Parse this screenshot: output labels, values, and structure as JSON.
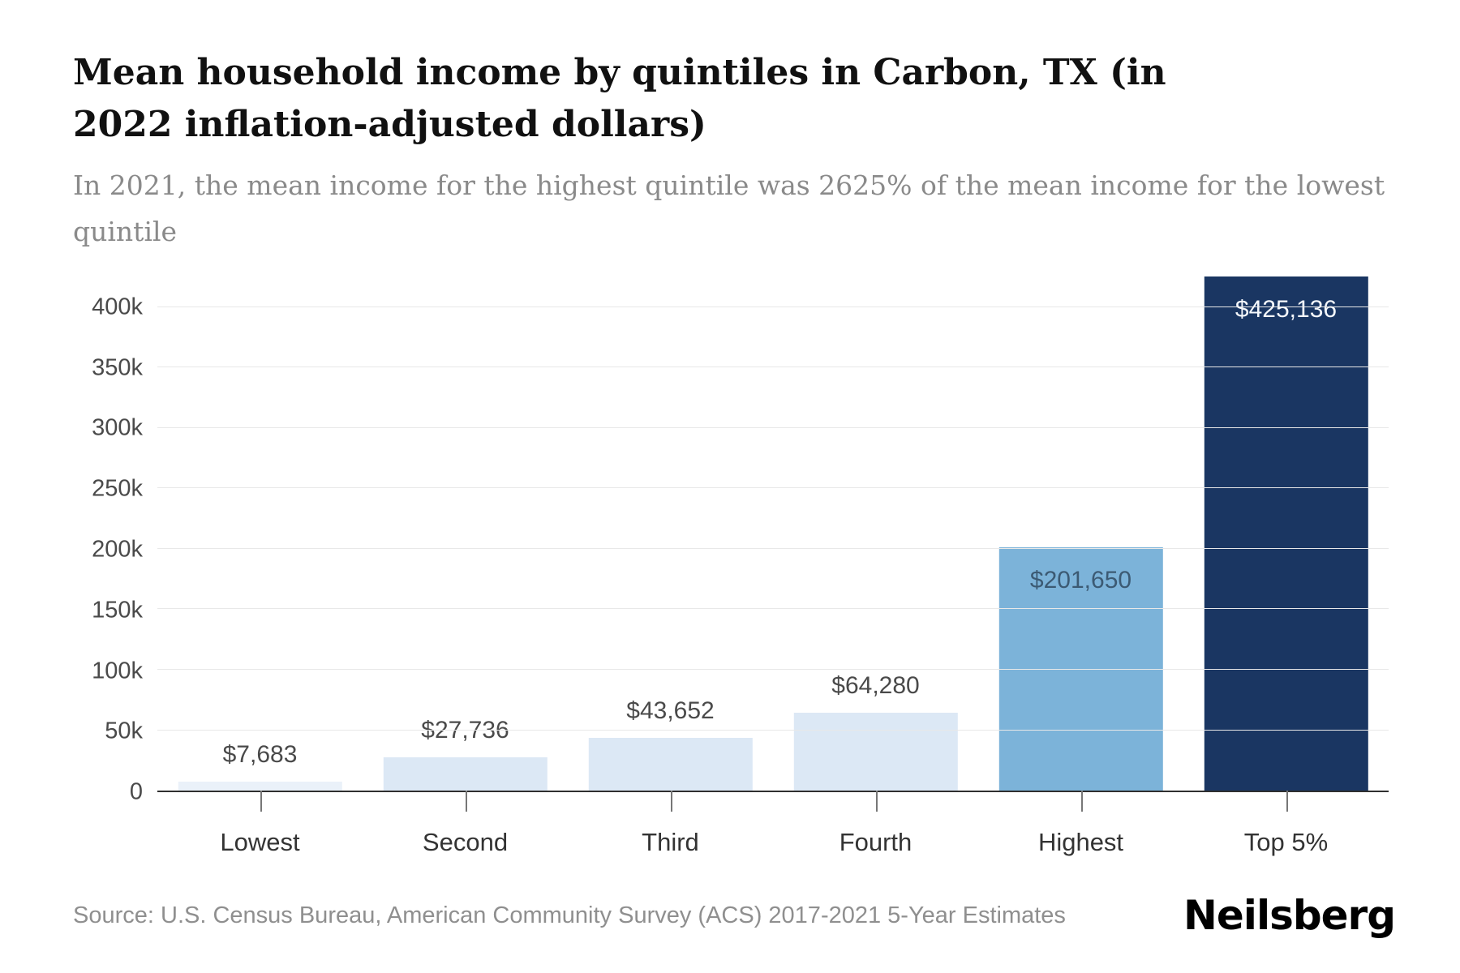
{
  "chart_data": {
    "type": "bar",
    "title": "Mean household income by quintiles in Carbon, TX (in 2022 inflation-adjusted dollars)",
    "subtitle": "In 2021, the mean income for the highest quintile was 2625% of the mean income for the lowest quintile",
    "categories": [
      "Lowest",
      "Second",
      "Third",
      "Fourth",
      "Highest",
      "Top 5%"
    ],
    "values": [
      7683,
      27736,
      43652,
      64280,
      201650,
      425136
    ],
    "value_labels": [
      "$7,683",
      "$27,736",
      "$43,652",
      "$64,280",
      "$201,650",
      "$425,136"
    ],
    "bar_colors": [
      "#eaf1f9",
      "#dce8f5",
      "#dce8f5",
      "#dce8f5",
      "#7cb3d9",
      "#1a3662"
    ],
    "label_placement": [
      "above",
      "above",
      "above",
      "above",
      "inside-dark",
      "inside-light"
    ],
    "xlabel": "",
    "ylabel": "",
    "ylim": [
      0,
      432000
    ],
    "yticks": [
      0,
      50000,
      100000,
      150000,
      200000,
      250000,
      300000,
      350000,
      400000
    ],
    "ytick_labels": [
      "0",
      "50k",
      "100k",
      "150k",
      "200k",
      "250k",
      "300k",
      "350k",
      "400k"
    ],
    "grid": "horizontal",
    "legend": "none"
  },
  "footer": {
    "source": "Source: U.S. Census Bureau, American Community Survey (ACS) 2017-2021 5-Year Estimates",
    "logo": "Neilsberg"
  }
}
